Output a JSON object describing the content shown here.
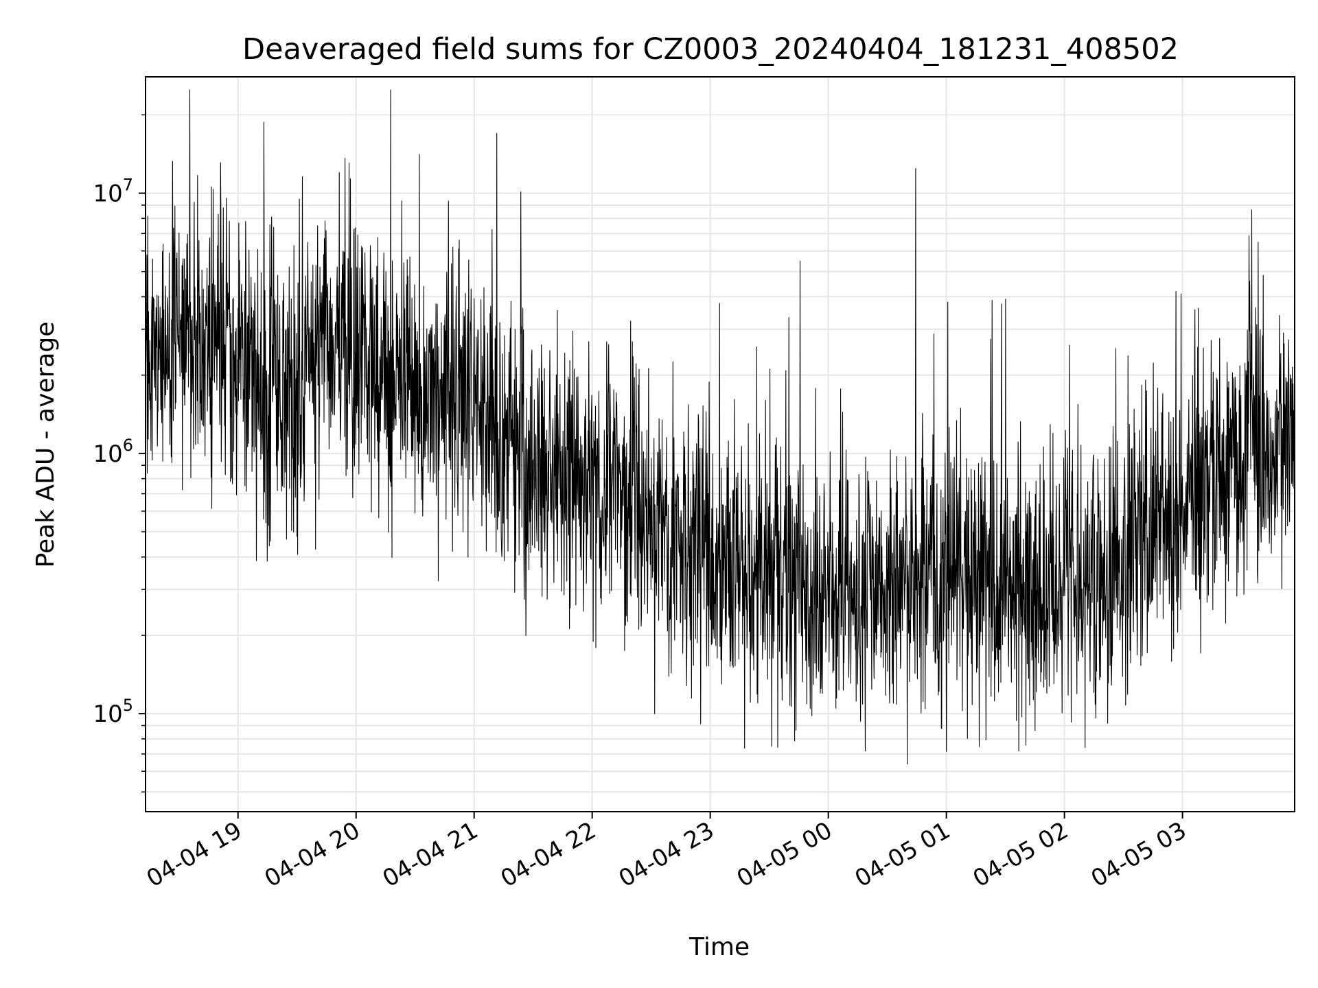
{
  "chart_data": {
    "type": "line",
    "title": "Deaveraged field sums for CZ0003_20240404_181231_408502",
    "xlabel": "Time",
    "ylabel": "Peak ADU - average",
    "y_scale": "log",
    "ylim": [
      42000,
      28000000
    ],
    "xlim": [
      "2024-04-04T18:13",
      "2024-04-05T03:57"
    ],
    "grid": true,
    "line_color": "#000000",
    "x_ticks": [
      {
        "t": "2024-04-04T19:00",
        "label": "04-04 19"
      },
      {
        "t": "2024-04-04T20:00",
        "label": "04-04 20"
      },
      {
        "t": "2024-04-04T21:00",
        "label": "04-04 21"
      },
      {
        "t": "2024-04-04T22:00",
        "label": "04-04 22"
      },
      {
        "t": "2024-04-04T23:00",
        "label": "04-04 23"
      },
      {
        "t": "2024-04-05T00:00",
        "label": "04-05 00"
      },
      {
        "t": "2024-04-05T01:00",
        "label": "04-05 01"
      },
      {
        "t": "2024-04-05T02:00",
        "label": "04-05 02"
      },
      {
        "t": "2024-04-05T03:00",
        "label": "04-05 03"
      }
    ],
    "y_ticks": [
      {
        "value": 100000,
        "base": "10",
        "exp": "5"
      },
      {
        "value": 1000000,
        "base": "10",
        "exp": "6"
      },
      {
        "value": 10000000,
        "base": "10",
        "exp": "7"
      }
    ],
    "series": [
      {
        "x": [
          "2024-04-04T18:13",
          "2024-04-04T18:30",
          "2024-04-04T18:45",
          "2024-04-04T19:00",
          "2024-04-04T19:15",
          "2024-04-04T19:30",
          "2024-04-04T19:45",
          "2024-04-04T20:00",
          "2024-04-04T20:15",
          "2024-04-04T20:30",
          "2024-04-04T20:45",
          "2024-04-04T21:00",
          "2024-04-04T21:15",
          "2024-04-04T21:30",
          "2024-04-04T21:45",
          "2024-04-04T22:00",
          "2024-04-04T22:15",
          "2024-04-04T22:30",
          "2024-04-04T22:45",
          "2024-04-04T23:00",
          "2024-04-04T23:15",
          "2024-04-04T23:30",
          "2024-04-04T23:45",
          "2024-04-05T00:00",
          "2024-04-05T00:15",
          "2024-04-05T00:30",
          "2024-04-05T00:45",
          "2024-04-05T01:00",
          "2024-04-05T01:15",
          "2024-04-05T01:30",
          "2024-04-05T01:45",
          "2024-04-05T02:00",
          "2024-04-05T02:15",
          "2024-04-05T02:30",
          "2024-04-05T02:45",
          "2024-04-05T03:00",
          "2024-04-05T03:15",
          "2024-04-05T03:30",
          "2024-04-05T03:45",
          "2024-04-05T03:57"
        ],
        "values": [
          2200000,
          3000000,
          2800000,
          2500000,
          1800000,
          1700000,
          3000000,
          2000000,
          1800000,
          1600000,
          1400000,
          1500000,
          1200000,
          900000,
          800000,
          700000,
          650000,
          500000,
          420000,
          380000,
          350000,
          330000,
          310000,
          320000,
          310000,
          330000,
          340000,
          330000,
          330000,
          320000,
          320000,
          330000,
          350000,
          450000,
          500000,
          600000,
          800000,
          1000000,
          1100000,
          1200000
        ]
      }
    ]
  }
}
